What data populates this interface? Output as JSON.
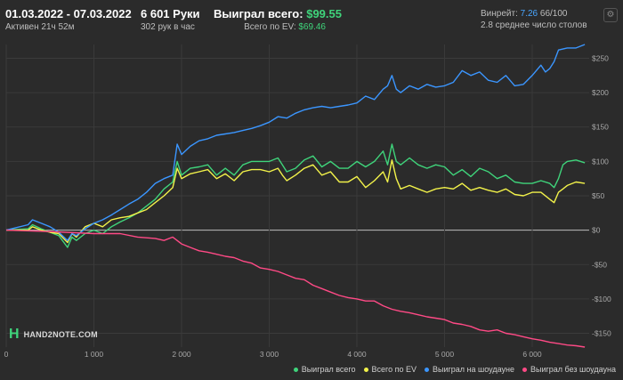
{
  "header": {
    "date_range": "01.03.2022 - 07.03.2022",
    "active_time": "Активен 21ч 52м",
    "hands": "6 601 Руки",
    "hands_per_hour": "302 рук в час",
    "won_total_label": "Выиграл всего:",
    "won_total_value": "$99.55",
    "ev_total_label": "Всего по EV:",
    "ev_total_value": "$69.46",
    "winrate_label": "Винрейт:",
    "winrate_value": "7.26",
    "winrate_unit": "66/100",
    "avg_tables": "2.8 среднее число столов",
    "settings_icon": "gear-icon"
  },
  "logo": {
    "mark": "H",
    "text": "HAND2NOTE.COM"
  },
  "colors": {
    "background": "#2b2b2b",
    "won_total": "#3fd47b",
    "ev": "#f2f24a",
    "showdown": "#3b96ff",
    "non_showdown": "#ff4a86",
    "grid": "#3b3b3b",
    "zero_line": "#bcbcbc"
  },
  "chart_data": {
    "type": "line",
    "xlim": [
      0,
      6650
    ],
    "ylim": [
      -170,
      270
    ],
    "x_ticks": [
      0,
      1000,
      2000,
      3000,
      4000,
      5000,
      6000
    ],
    "x_tick_labels": [
      "0",
      "1 000",
      "2 000",
      "3 000",
      "4 000",
      "5 000",
      "6 000"
    ],
    "y_ticks": [
      250,
      200,
      150,
      100,
      50,
      0,
      -50,
      -100,
      -150
    ],
    "y_tick_labels": [
      "$250",
      "$200",
      "$150",
      "$100",
      "$50",
      "$0",
      "-$50",
      "-$100",
      "-$150"
    ],
    "grid": true,
    "legend_position": "bottom-right",
    "series": [
      {
        "name": "Выиграл всего",
        "color": "#3fd47b",
        "points": [
          [
            0,
            0
          ],
          [
            250,
            2
          ],
          [
            300,
            8
          ],
          [
            400,
            2
          ],
          [
            500,
            -3
          ],
          [
            600,
            -8
          ],
          [
            700,
            -25
          ],
          [
            750,
            -10
          ],
          [
            800,
            -15
          ],
          [
            900,
            -5
          ],
          [
            1000,
            0
          ],
          [
            1100,
            -5
          ],
          [
            1200,
            5
          ],
          [
            1300,
            12
          ],
          [
            1400,
            18
          ],
          [
            1500,
            25
          ],
          [
            1600,
            35
          ],
          [
            1700,
            45
          ],
          [
            1800,
            60
          ],
          [
            1900,
            70
          ],
          [
            1950,
            100
          ],
          [
            2000,
            80
          ],
          [
            2100,
            90
          ],
          [
            2200,
            92
          ],
          [
            2300,
            95
          ],
          [
            2400,
            80
          ],
          [
            2500,
            90
          ],
          [
            2600,
            80
          ],
          [
            2700,
            95
          ],
          [
            2800,
            100
          ],
          [
            2900,
            100
          ],
          [
            3000,
            100
          ],
          [
            3100,
            105
          ],
          [
            3150,
            95
          ],
          [
            3200,
            85
          ],
          [
            3300,
            90
          ],
          [
            3400,
            102
          ],
          [
            3500,
            108
          ],
          [
            3600,
            92
          ],
          [
            3700,
            100
          ],
          [
            3800,
            90
          ],
          [
            3900,
            90
          ],
          [
            4000,
            100
          ],
          [
            4100,
            92
          ],
          [
            4200,
            100
          ],
          [
            4300,
            115
          ],
          [
            4350,
            95
          ],
          [
            4400,
            125
          ],
          [
            4450,
            100
          ],
          [
            4500,
            95
          ],
          [
            4600,
            105
          ],
          [
            4700,
            95
          ],
          [
            4800,
            90
          ],
          [
            4900,
            95
          ],
          [
            5000,
            92
          ],
          [
            5100,
            80
          ],
          [
            5200,
            88
          ],
          [
            5300,
            78
          ],
          [
            5400,
            90
          ],
          [
            5500,
            85
          ],
          [
            5600,
            75
          ],
          [
            5700,
            80
          ],
          [
            5800,
            70
          ],
          [
            5900,
            68
          ],
          [
            6000,
            68
          ],
          [
            6100,
            72
          ],
          [
            6200,
            68
          ],
          [
            6250,
            62
          ],
          [
            6300,
            75
          ],
          [
            6350,
            95
          ],
          [
            6400,
            100
          ],
          [
            6500,
            102
          ],
          [
            6600,
            98
          ]
        ]
      },
      {
        "name": "Всего по EV",
        "color": "#f2f24a",
        "points": [
          [
            0,
            0
          ],
          [
            250,
            0
          ],
          [
            300,
            5
          ],
          [
            400,
            0
          ],
          [
            500,
            -3
          ],
          [
            600,
            -5
          ],
          [
            700,
            -18
          ],
          [
            750,
            -5
          ],
          [
            800,
            -10
          ],
          [
            900,
            5
          ],
          [
            1000,
            10
          ],
          [
            1100,
            5
          ],
          [
            1200,
            15
          ],
          [
            1300,
            18
          ],
          [
            1400,
            20
          ],
          [
            1500,
            25
          ],
          [
            1600,
            30
          ],
          [
            1700,
            40
          ],
          [
            1800,
            50
          ],
          [
            1900,
            62
          ],
          [
            1950,
            90
          ],
          [
            2000,
            75
          ],
          [
            2100,
            82
          ],
          [
            2200,
            85
          ],
          [
            2300,
            88
          ],
          [
            2400,
            75
          ],
          [
            2500,
            82
          ],
          [
            2600,
            72
          ],
          [
            2700,
            85
          ],
          [
            2800,
            88
          ],
          [
            2900,
            88
          ],
          [
            3000,
            85
          ],
          [
            3100,
            90
          ],
          [
            3150,
            80
          ],
          [
            3200,
            72
          ],
          [
            3300,
            80
          ],
          [
            3400,
            90
          ],
          [
            3500,
            95
          ],
          [
            3600,
            80
          ],
          [
            3700,
            85
          ],
          [
            3800,
            70
          ],
          [
            3900,
            70
          ],
          [
            4000,
            78
          ],
          [
            4100,
            62
          ],
          [
            4200,
            72
          ],
          [
            4300,
            85
          ],
          [
            4350,
            70
          ],
          [
            4400,
            102
          ],
          [
            4450,
            75
          ],
          [
            4500,
            60
          ],
          [
            4600,
            65
          ],
          [
            4700,
            60
          ],
          [
            4800,
            55
          ],
          [
            4900,
            60
          ],
          [
            5000,
            62
          ],
          [
            5100,
            60
          ],
          [
            5200,
            68
          ],
          [
            5300,
            58
          ],
          [
            5400,
            62
          ],
          [
            5500,
            58
          ],
          [
            5600,
            55
          ],
          [
            5700,
            60
          ],
          [
            5800,
            52
          ],
          [
            5900,
            50
          ],
          [
            6000,
            55
          ],
          [
            6100,
            55
          ],
          [
            6200,
            45
          ],
          [
            6250,
            40
          ],
          [
            6300,
            55
          ],
          [
            6350,
            60
          ],
          [
            6400,
            65
          ],
          [
            6500,
            70
          ],
          [
            6600,
            68
          ]
        ]
      },
      {
        "name": "Выиграл на шоудауне",
        "color": "#3b96ff",
        "points": [
          [
            0,
            0
          ],
          [
            250,
            8
          ],
          [
            300,
            15
          ],
          [
            400,
            10
          ],
          [
            500,
            5
          ],
          [
            600,
            -3
          ],
          [
            700,
            -15
          ],
          [
            750,
            -5
          ],
          [
            800,
            -8
          ],
          [
            900,
            2
          ],
          [
            1000,
            10
          ],
          [
            1100,
            15
          ],
          [
            1200,
            22
          ],
          [
            1300,
            30
          ],
          [
            1400,
            38
          ],
          [
            1500,
            45
          ],
          [
            1600,
            55
          ],
          [
            1700,
            68
          ],
          [
            1800,
            75
          ],
          [
            1900,
            80
          ],
          [
            1950,
            125
          ],
          [
            2000,
            110
          ],
          [
            2100,
            122
          ],
          [
            2200,
            130
          ],
          [
            2300,
            133
          ],
          [
            2400,
            138
          ],
          [
            2500,
            140
          ],
          [
            2600,
            142
          ],
          [
            2700,
            145
          ],
          [
            2800,
            148
          ],
          [
            2900,
            152
          ],
          [
            3000,
            157
          ],
          [
            3100,
            165
          ],
          [
            3200,
            163
          ],
          [
            3300,
            170
          ],
          [
            3400,
            175
          ],
          [
            3500,
            178
          ],
          [
            3600,
            180
          ],
          [
            3700,
            178
          ],
          [
            3800,
            180
          ],
          [
            3900,
            182
          ],
          [
            4000,
            185
          ],
          [
            4100,
            195
          ],
          [
            4200,
            190
          ],
          [
            4300,
            205
          ],
          [
            4350,
            210
          ],
          [
            4400,
            225
          ],
          [
            4450,
            205
          ],
          [
            4500,
            200
          ],
          [
            4600,
            210
          ],
          [
            4700,
            205
          ],
          [
            4800,
            212
          ],
          [
            4900,
            208
          ],
          [
            5000,
            210
          ],
          [
            5100,
            215
          ],
          [
            5200,
            232
          ],
          [
            5300,
            225
          ],
          [
            5400,
            230
          ],
          [
            5500,
            218
          ],
          [
            5600,
            215
          ],
          [
            5700,
            225
          ],
          [
            5800,
            210
          ],
          [
            5900,
            212
          ],
          [
            6000,
            225
          ],
          [
            6100,
            240
          ],
          [
            6150,
            230
          ],
          [
            6200,
            235
          ],
          [
            6250,
            245
          ],
          [
            6300,
            262
          ],
          [
            6400,
            265
          ],
          [
            6500,
            265
          ],
          [
            6600,
            270
          ]
        ]
      },
      {
        "name": "Выиграл без шоудауна",
        "color": "#ff4a86",
        "points": [
          [
            0,
            0
          ],
          [
            500,
            -2
          ],
          [
            1000,
            -5
          ],
          [
            1300,
            -5
          ],
          [
            1500,
            -10
          ],
          [
            1700,
            -12
          ],
          [
            1800,
            -15
          ],
          [
            1900,
            -10
          ],
          [
            2000,
            -20
          ],
          [
            2100,
            -25
          ],
          [
            2200,
            -30
          ],
          [
            2300,
            -32
          ],
          [
            2400,
            -35
          ],
          [
            2500,
            -38
          ],
          [
            2600,
            -40
          ],
          [
            2700,
            -45
          ],
          [
            2800,
            -48
          ],
          [
            2900,
            -55
          ],
          [
            3000,
            -57
          ],
          [
            3100,
            -60
          ],
          [
            3200,
            -65
          ],
          [
            3300,
            -70
          ],
          [
            3400,
            -72
          ],
          [
            3500,
            -80
          ],
          [
            3600,
            -85
          ],
          [
            3700,
            -90
          ],
          [
            3800,
            -95
          ],
          [
            3900,
            -98
          ],
          [
            4000,
            -100
          ],
          [
            4100,
            -103
          ],
          [
            4200,
            -103
          ],
          [
            4300,
            -110
          ],
          [
            4400,
            -115
          ],
          [
            4500,
            -118
          ],
          [
            4600,
            -120
          ],
          [
            4700,
            -123
          ],
          [
            4800,
            -126
          ],
          [
            4900,
            -128
          ],
          [
            5000,
            -130
          ],
          [
            5100,
            -135
          ],
          [
            5200,
            -137
          ],
          [
            5300,
            -140
          ],
          [
            5400,
            -145
          ],
          [
            5500,
            -147
          ],
          [
            5600,
            -145
          ],
          [
            5700,
            -150
          ],
          [
            5800,
            -152
          ],
          [
            5900,
            -155
          ],
          [
            6000,
            -158
          ],
          [
            6100,
            -160
          ],
          [
            6200,
            -163
          ],
          [
            6300,
            -165
          ],
          [
            6400,
            -167
          ],
          [
            6500,
            -168
          ],
          [
            6600,
            -170
          ]
        ]
      }
    ]
  }
}
